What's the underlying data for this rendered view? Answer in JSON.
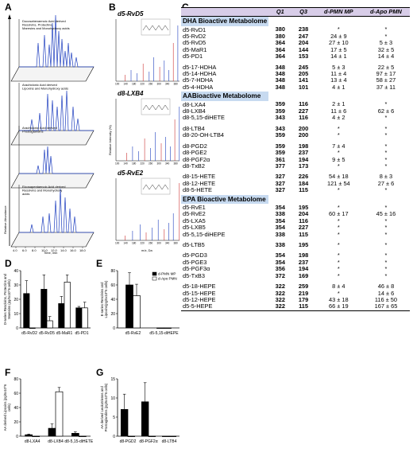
{
  "panel_labels": {
    "a": "A",
    "b": "B",
    "c": "C",
    "d": "D",
    "e": "E",
    "f": "F",
    "g": "G"
  },
  "panelA": {
    "layers": [
      "Docosahexaenoic Acid derived Resolvins, Protectins, Maresins and Monohydroxy acids",
      "Arachidonic Acid derived Lipoxins and Monohydroxy acids",
      "Arachidonic Acid derived Prostaglandins",
      "Eicosapentaenoic Acid derived Resolvins and Monohydroxy acids"
    ],
    "ylabel": "Relative Abundance",
    "xlabel": "Time, min",
    "ticks": [
      "4.0",
      "6.0",
      "8.0",
      "10.0",
      "12.0",
      "14.0",
      "16.0",
      "18.0"
    ]
  },
  "panelB": {
    "spectra": [
      {
        "title": "d5-RvD5",
        "ticks": [
          "100",
          "140",
          "180",
          "220",
          "260",
          "300",
          "340",
          "380"
        ]
      },
      {
        "title": "d8-LXB4",
        "ticks": [
          "100",
          "140",
          "180",
          "220",
          "260",
          "300",
          "340",
          "380"
        ]
      },
      {
        "title": "d5-RvE2",
        "ticks": [
          "100",
          "140",
          "180",
          "220",
          "260",
          "300",
          "340",
          "380"
        ]
      }
    ],
    "ylabel": "Relative Intensity (%)",
    "xlabel": "m/z, Da"
  },
  "tableC": {
    "headers": [
      "",
      "Q1",
      "Q3",
      "d-PMN MP",
      "d-Apo PMN"
    ],
    "rows": [
      {
        "type": "section",
        "name": "DHA Bioactive Metabolome"
      },
      {
        "name": "d5-RvD1",
        "q1": "380",
        "q3": "238",
        "mp": "*",
        "apo": "*"
      },
      {
        "name": "d5-RvD2",
        "q1": "380",
        "q3": "247",
        "mp": "24 ± 9",
        "apo": "*"
      },
      {
        "name": "d5-RvD5",
        "q1": "364",
        "q3": "204",
        "mp": "27 ± 10",
        "apo": "5 ± 3"
      },
      {
        "name": "d5-MaR1",
        "q1": "364",
        "q3": "144",
        "mp": "17 ± 5",
        "apo": "32 ± 5"
      },
      {
        "name": "d5-PD1",
        "q1": "364",
        "q3": "153",
        "mp": "14 ± 1",
        "apo": "14 ± 4"
      },
      {
        "type": "gap"
      },
      {
        "name": "d5-17-HDHA",
        "q1": "348",
        "q3": "245",
        "mp": "5 ± 3",
        "apo": "22 ± 5"
      },
      {
        "name": "d5-14-HDHA",
        "q1": "348",
        "q3": "205",
        "mp": "11 ± 4",
        "apo": "97 ± 17"
      },
      {
        "name": "d5-7-HDHA",
        "q1": "348",
        "q3": "141",
        "mp": "13 ± 4",
        "apo": "58 ± 27"
      },
      {
        "name": "d5-4-HDHA",
        "q1": "348",
        "q3": "101",
        "mp": "4 ± 1",
        "apo": "37 ± 11"
      },
      {
        "type": "section",
        "name": "AABioactive Metabolome"
      },
      {
        "name": "d8-LXA4",
        "q1": "359",
        "q3": "116",
        "mp": "2 ± 1",
        "apo": "*"
      },
      {
        "name": "d8-LXB4",
        "q1": "359",
        "q3": "227",
        "mp": "11 ± 6",
        "apo": "62 ± 6"
      },
      {
        "name": "d8-5,15-diHETE",
        "q1": "343",
        "q3": "116",
        "mp": "4 ± 2",
        "apo": "*"
      },
      {
        "type": "gap"
      },
      {
        "name": "d8-LTB4",
        "q1": "343",
        "q3": "200",
        "mp": "*",
        "apo": "*"
      },
      {
        "name": "d8-20-OH-LTB4",
        "q1": "359",
        "q3": "200",
        "mp": "*",
        "apo": "*"
      },
      {
        "type": "gap"
      },
      {
        "name": "d8-PGD2",
        "q1": "359",
        "q3": "198",
        "mp": "7 ± 4",
        "apo": "*"
      },
      {
        "name": "d8-PGE2",
        "q1": "359",
        "q3": "237",
        "mp": "*",
        "apo": "*"
      },
      {
        "name": "d8-PGF2α",
        "q1": "361",
        "q3": "194",
        "mp": "9 ± 5",
        "apo": "*"
      },
      {
        "name": "d8-TxB2",
        "q1": "377",
        "q3": "173",
        "mp": "*",
        "apo": "*"
      },
      {
        "type": "gap"
      },
      {
        "name": "d8-15-HETE",
        "q1": "327",
        "q3": "226",
        "mp": "54 ± 18",
        "apo": "8 ± 3"
      },
      {
        "name": "d8-12-HETE",
        "q1": "327",
        "q3": "184",
        "mp": "121 ± 54",
        "apo": "27 ± 6"
      },
      {
        "name": "d8-5-HETE",
        "q1": "327",
        "q3": "115",
        "mp": "*",
        "apo": "*"
      },
      {
        "type": "section",
        "name": "EPA Bioactive Metabolome"
      },
      {
        "name": "d5-RvE1",
        "q1": "354",
        "q3": "195",
        "mp": "*",
        "apo": "*"
      },
      {
        "name": "d5-RvE2",
        "q1": "338",
        "q3": "204",
        "mp": "60 ± 17",
        "apo": "45 ± 16"
      },
      {
        "name": "d5-LXA5",
        "q1": "354",
        "q3": "116",
        "mp": "*",
        "apo": "*"
      },
      {
        "name": "d5-LXB5",
        "q1": "354",
        "q3": "227",
        "mp": "*",
        "apo": "*"
      },
      {
        "name": "d5-5,15-diHEPE",
        "q1": "338",
        "q3": "115",
        "mp": "*",
        "apo": "*"
      },
      {
        "type": "gap"
      },
      {
        "name": "d5-LTB5",
        "q1": "338",
        "q3": "195",
        "mp": "*",
        "apo": "*"
      },
      {
        "type": "gap"
      },
      {
        "name": "d5-PGD3",
        "q1": "354",
        "q3": "198",
        "mp": "*",
        "apo": "*"
      },
      {
        "name": "d5-PGE3",
        "q1": "354",
        "q3": "237",
        "mp": "*",
        "apo": "*"
      },
      {
        "name": "d5-PGF3α",
        "q1": "356",
        "q3": "194",
        "mp": "*",
        "apo": "*"
      },
      {
        "name": "d5-TxB3",
        "q1": "372",
        "q3": "169",
        "mp": "*",
        "apo": "*"
      },
      {
        "type": "gap"
      },
      {
        "name": "d5-18-HEPE",
        "q1": "322",
        "q3": "259",
        "mp": "8 ± 4",
        "apo": "46 ± 8"
      },
      {
        "name": "d5-15-HEPE",
        "q1": "322",
        "q3": "219",
        "mp": "*",
        "apo": "14 ± 6"
      },
      {
        "name": "d5-12-HEPE",
        "q1": "322",
        "q3": "179",
        "mp": "43 ± 18",
        "apo": "116 ± 50"
      },
      {
        "name": "d5-5-HEPE",
        "q1": "322",
        "q3": "115",
        "mp": "66 ± 19",
        "apo": "167 ± 65"
      }
    ]
  },
  "chart_data": [
    {
      "panel": "D",
      "type": "bar",
      "categories": [
        "d5-RvD2",
        "d5-RvD5",
        "d5-MaR1",
        "d5-PD1"
      ],
      "series": [
        {
          "name": "d-PMN MP",
          "values": [
            24,
            27,
            17,
            14
          ],
          "errors": [
            9,
            10,
            5,
            1
          ]
        },
        {
          "name": "d-Apo PMN",
          "values": [
            0,
            5,
            32,
            14
          ],
          "errors": [
            0,
            3,
            5,
            4
          ]
        }
      ],
      "ylabel": "D-series Resolvins, Protectins and Maresins (pg/5x10^6 cells)",
      "ylim": [
        0,
        40
      ],
      "yticks": [
        0,
        10,
        20,
        30,
        40
      ]
    },
    {
      "panel": "E",
      "type": "bar",
      "categories": [
        "d5-RvE2",
        "d5-5,15-diHEPE"
      ],
      "series": [
        {
          "name": "d-PMN MP",
          "values": [
            60,
            0
          ],
          "errors": [
            17,
            0
          ]
        },
        {
          "name": "d-Apo PMN",
          "values": [
            45,
            0
          ],
          "errors": [
            16,
            0
          ]
        }
      ],
      "ylabel": "E-series Resolvins and Lipoxins(pg/5x10^6 cells)",
      "ylim": [
        0,
        80
      ],
      "yticks": [
        0,
        20,
        40,
        60,
        80
      ],
      "legend": [
        "d-PMN MP",
        "d-Apo PMN"
      ],
      "legend_position": "top-right"
    },
    {
      "panel": "F",
      "type": "bar",
      "categories": [
        "d8-LXA4",
        "d8-LXB4",
        "d8-5,15-diHETE"
      ],
      "series": [
        {
          "name": "d-PMN MP",
          "values": [
            2,
            11,
            4
          ],
          "errors": [
            1,
            6,
            2
          ]
        },
        {
          "name": "d-Apo PMN",
          "values": [
            0,
            62,
            0
          ],
          "errors": [
            0,
            6,
            0
          ]
        }
      ],
      "ylabel": "AA derived Lipoxins (pg/5x10^6 cells)",
      "ylim": [
        0,
        80
      ],
      "yticks": [
        0,
        20,
        40,
        60,
        80
      ]
    },
    {
      "panel": "G",
      "type": "bar",
      "categories": [
        "d8-PGD2",
        "d8-PGF2α",
        "d8-LTB4"
      ],
      "series": [
        {
          "name": "d-PMN MP",
          "values": [
            7,
            9,
            0
          ],
          "errors": [
            4,
            5,
            0
          ]
        },
        {
          "name": "d-Apo PMN",
          "values": [
            0,
            0,
            0
          ],
          "errors": [
            0,
            0,
            0
          ]
        }
      ],
      "ylabel": "AA derived Leukotrienes and Prostaglandins (pg/5x10^6 cells)",
      "ylim": [
        0,
        15
      ],
      "yticks": [
        0,
        5,
        10,
        15
      ]
    }
  ],
  "colors": {
    "mp": "#000000",
    "apo": "#ffffff",
    "chrom": "#1f3fbf",
    "header": "#d8cde8",
    "section": "#c7daf0"
  }
}
